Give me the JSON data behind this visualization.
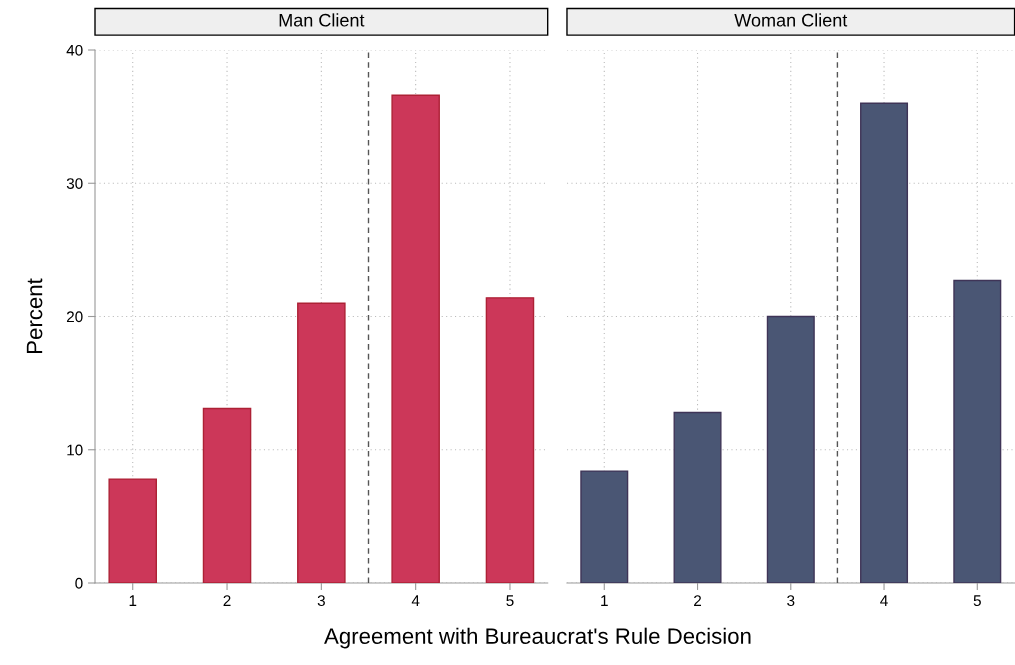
{
  "chart_data": [
    {
      "type": "bar",
      "title": "Man Client",
      "ylabel": "Percent",
      "xlabel": "Agreement with Bureaucrat's Rule Decision",
      "x": [
        1,
        2,
        3,
        4,
        5
      ],
      "series": [
        {
          "color": "#cc3759",
          "values": [
            7.8,
            13.1,
            21.0,
            36.6,
            21.4
          ]
        }
      ],
      "xlim": [
        0.6,
        5.4
      ],
      "xticks": [
        1,
        2,
        3,
        4,
        5
      ],
      "ylim": [
        0,
        40
      ],
      "yticks": [
        0,
        10,
        20,
        30,
        40
      ],
      "ref_lines": [
        {
          "axis": "x",
          "value": 3.5,
          "color": "#555555",
          "line_style": "dashed"
        }
      ],
      "grid": true,
      "legend": false
    },
    {
      "type": "bar",
      "title": "Woman Client",
      "x": [
        1,
        2,
        3,
        4,
        5
      ],
      "series": [
        {
          "color": "#4a5674",
          "values": [
            8.4,
            12.8,
            20.0,
            36.0,
            22.7
          ]
        }
      ],
      "xlim": [
        0.6,
        5.4
      ],
      "xticks": [
        1,
        2,
        3,
        4,
        5
      ],
      "ylim": [
        0,
        40
      ],
      "yticks": [
        0,
        10,
        20,
        30,
        40
      ],
      "ref_lines": [
        {
          "axis": "x",
          "value": 3.5,
          "color": "#555555",
          "line_style": "dashed"
        }
      ],
      "grid": true,
      "legend": false,
      "tick_labels": "x"
    }
  ]
}
